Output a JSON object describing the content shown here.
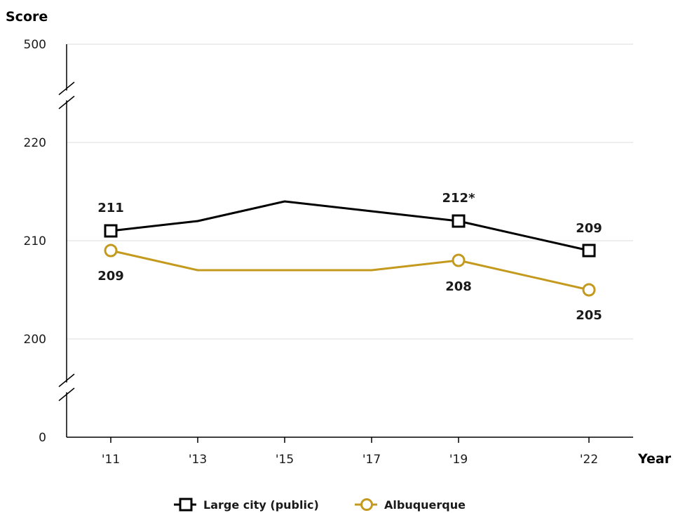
{
  "chart_data": {
    "type": "line",
    "ylabel": "Score",
    "xlabel": "Year",
    "x": [
      "'11",
      "'13",
      "'15",
      "'17",
      "'19",
      "'22"
    ],
    "yticks": [
      {
        "value": 0,
        "label": "0"
      },
      {
        "value": 200,
        "label": "200"
      },
      {
        "value": 210,
        "label": "210"
      },
      {
        "value": 220,
        "label": "220"
      },
      {
        "value": 500,
        "label": "500"
      }
    ],
    "ylim": [
      0,
      500
    ],
    "y_axis_breaks": [
      "0-200",
      "220-500"
    ],
    "grid": true,
    "legend_position": "bottom",
    "series": [
      {
        "name": "Large city (public)",
        "color": "#000000",
        "marker": "square",
        "values": [
          211,
          212,
          214,
          213,
          212,
          209
        ],
        "data_labels": [
          "211",
          null,
          null,
          null,
          "212*",
          "209"
        ]
      },
      {
        "name": "Albuquerque",
        "color": "#c49a1e",
        "marker": "circle",
        "values": [
          209,
          207,
          207,
          207,
          208,
          205
        ],
        "data_labels": [
          "209",
          null,
          null,
          null,
          "208",
          "205"
        ]
      }
    ]
  }
}
